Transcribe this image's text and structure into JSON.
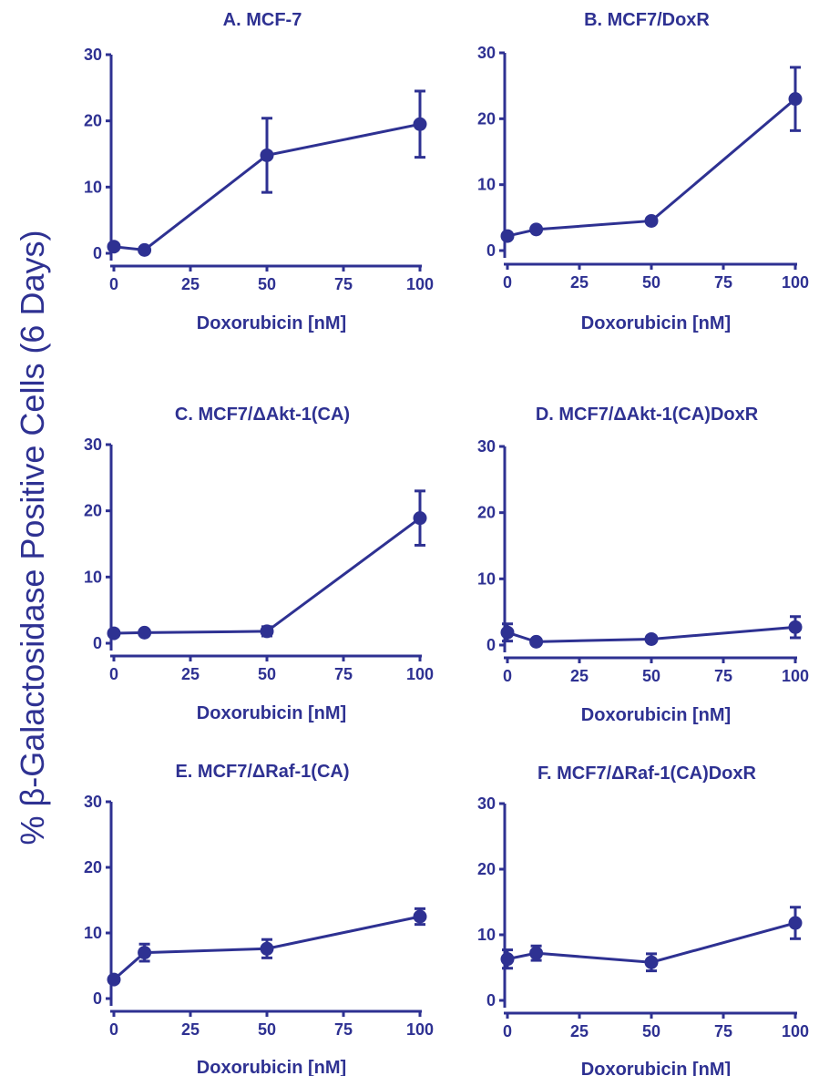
{
  "figure": {
    "ylabel": "% β-Galactosidase Positive Cells (6 Days)",
    "color": "#2e3192"
  },
  "chart_data": [
    {
      "type": "line",
      "title": "A. MCF-7",
      "xlabel": "Doxorubicin [nM]",
      "ylabel": "",
      "xlim": [
        0,
        100
      ],
      "ylim": [
        0,
        30
      ],
      "xticks": [
        "0",
        "25",
        "50",
        "75",
        "100"
      ],
      "yticks": [
        "0",
        "10",
        "20",
        "30"
      ],
      "x": [
        0,
        10,
        50,
        100
      ],
      "y": [
        1.0,
        0.5,
        14.8,
        19.5
      ],
      "yerr": [
        0,
        0,
        5.6,
        5.0
      ]
    },
    {
      "type": "line",
      "title": "B. MCF7/DoxR",
      "xlabel": "Doxorubicin [nM]",
      "ylabel": "",
      "xlim": [
        0,
        100
      ],
      "ylim": [
        0,
        30
      ],
      "xticks": [
        "0",
        "25",
        "50",
        "75",
        "100"
      ],
      "yticks": [
        "0",
        "10",
        "20",
        "30"
      ],
      "x": [
        0,
        10,
        50,
        100
      ],
      "y": [
        2.2,
        3.2,
        4.5,
        23.0
      ],
      "yerr": [
        0,
        0,
        0,
        4.8
      ]
    },
    {
      "type": "line",
      "title": "C. MCF7/ΔAkt-1(CA)",
      "xlabel": "Doxorubicin [nM]",
      "ylabel": "",
      "xlim": [
        0,
        100
      ],
      "ylim": [
        0,
        30
      ],
      "xticks": [
        "0",
        "25",
        "50",
        "75",
        "100"
      ],
      "yticks": [
        "0",
        "10",
        "20",
        "30"
      ],
      "x": [
        0,
        10,
        50,
        100
      ],
      "y": [
        1.5,
        1.6,
        1.8,
        18.9
      ],
      "yerr": [
        0,
        0,
        0.7,
        4.1
      ]
    },
    {
      "type": "line",
      "title": "D. MCF7/ΔAkt-1(CA)DoxR",
      "xlabel": "Doxorubicin [nM]",
      "ylabel": "",
      "xlim": [
        0,
        100
      ],
      "ylim": [
        0,
        30
      ],
      "xticks": [
        "0",
        "25",
        "50",
        "75",
        "100"
      ],
      "yticks": [
        "0",
        "10",
        "20",
        "30"
      ],
      "x": [
        0,
        10,
        50,
        100
      ],
      "y": [
        1.9,
        0.5,
        0.9,
        2.7
      ],
      "yerr": [
        1.3,
        0,
        0,
        1.6
      ]
    },
    {
      "type": "line",
      "title": "E. MCF7/ΔRaf-1(CA)",
      "xlabel": "Doxorubicin [nM]",
      "ylabel": "",
      "xlim": [
        0,
        100
      ],
      "ylim": [
        0,
        30
      ],
      "xticks": [
        "0",
        "25",
        "50",
        "75",
        "100"
      ],
      "yticks": [
        "0",
        "10",
        "20",
        "30"
      ],
      "x": [
        0,
        10,
        50,
        100
      ],
      "y": [
        2.9,
        7.0,
        7.6,
        12.5
      ],
      "yerr": [
        0,
        1.3,
        1.4,
        1.2
      ]
    },
    {
      "type": "line",
      "title": "F. MCF7/ΔRaf-1(CA)DoxR",
      "xlabel": "Doxorubicin [nM]",
      "ylabel": "",
      "xlim": [
        0,
        100
      ],
      "ylim": [
        0,
        30
      ],
      "xticks": [
        "0",
        "25",
        "50",
        "75",
        "100"
      ],
      "yticks": [
        "0",
        "10",
        "20",
        "30"
      ],
      "x": [
        0,
        10,
        50,
        100
      ],
      "y": [
        6.3,
        7.2,
        5.8,
        11.8
      ],
      "yerr": [
        1.4,
        1.1,
        1.3,
        2.4
      ]
    }
  ]
}
